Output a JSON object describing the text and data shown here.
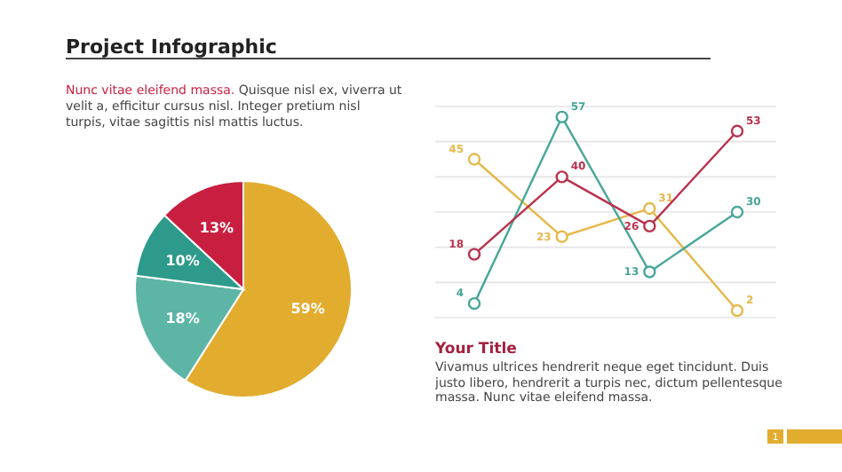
{
  "chart_data": [
    {
      "type": "pie",
      "title": "Project Infographic",
      "annotations": [
        "Nunc vitae eleifend massa.",
        "Quisque nisl ex, viverra ut velit a, efficitur cursus nisl. Integer pretium nisl turpis, vitae sagittis nisl mattis luctus."
      ],
      "categories": [
        null,
        null,
        null,
        null
      ],
      "values": [
        59,
        18,
        10,
        13
      ],
      "colors": [
        "#e2ac2f",
        "#5db5a6",
        "#2e9a8b",
        "#c81f40"
      ],
      "value_labels": [
        "59%",
        "18%",
        "10%",
        "13%"
      ]
    },
    {
      "type": "line",
      "categories": [
        null,
        null,
        null,
        null
      ],
      "yticks": [
        {
          "value": 0,
          "label": null
        },
        {
          "value": 10,
          "label": null
        },
        {
          "value": 20,
          "label": null
        },
        {
          "value": 30,
          "label": null
        },
        {
          "value": 40,
          "label": null
        },
        {
          "value": 50,
          "label": null
        },
        {
          "value": 60,
          "label": null
        }
      ],
      "grid": "y",
      "marker": "circle",
      "data_labels": true,
      "series": [
        {
          "color": "#e6b84a",
          "values": [
            45,
            23,
            31,
            2
          ]
        },
        {
          "color": "#47a699",
          "values": [
            4,
            57,
            13,
            30
          ]
        },
        {
          "color": "#b8324e",
          "values": [
            18,
            40,
            26,
            53
          ]
        }
      ],
      "annotations": [
        "Your Title",
        "Vivamus ultrices hendrerit neque eget tincidunt. Duis justo libero, hendrerit a turpis nec, dictum pellentesque massa. Nunc vitae eleifend massa.",
        "1"
      ]
    }
  ]
}
